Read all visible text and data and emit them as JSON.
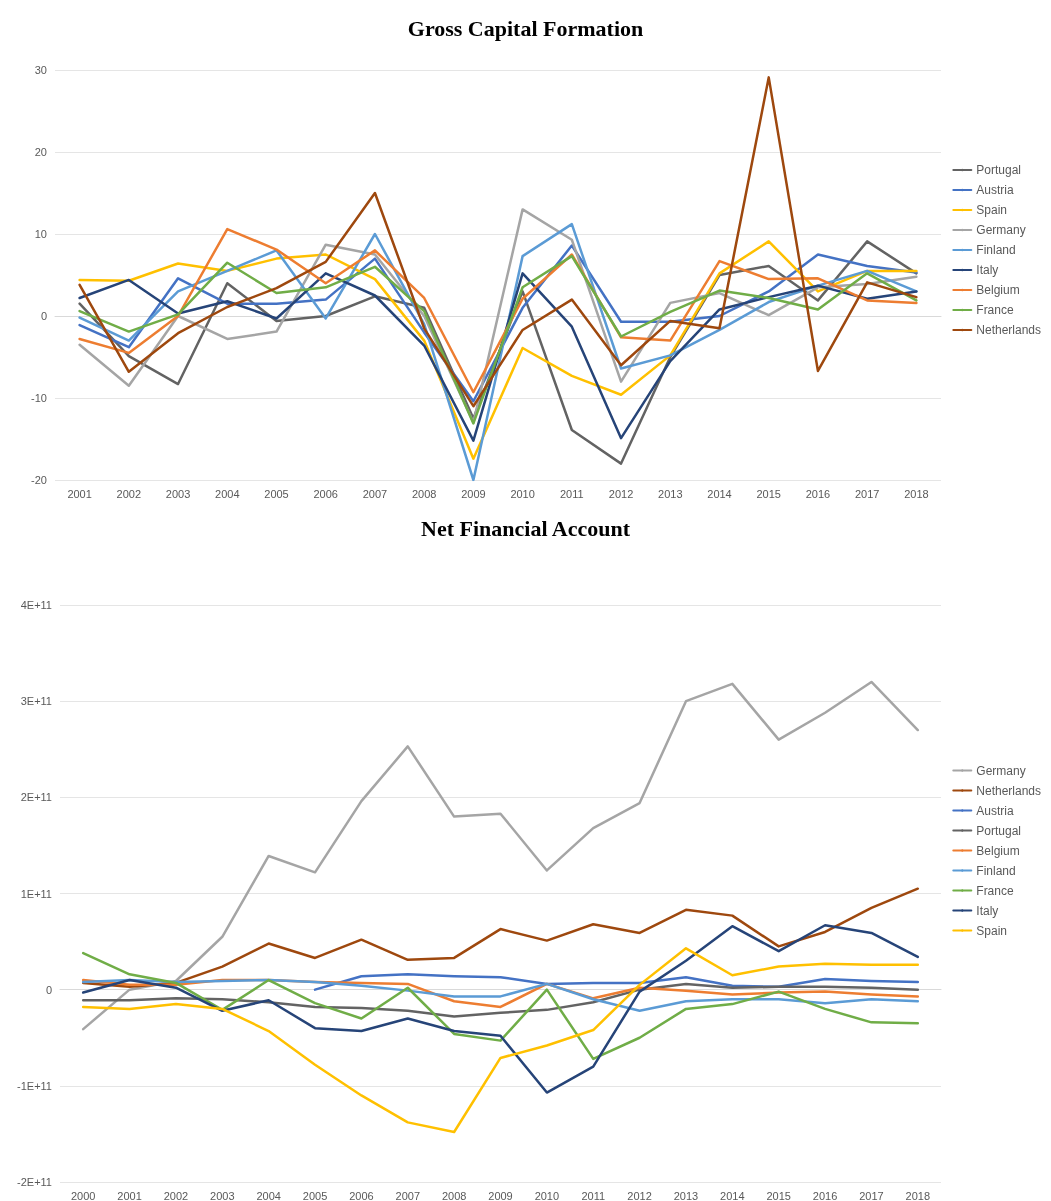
{
  "chart_data": [
    {
      "type": "line",
      "title": "Gross Capital Formation",
      "categories": [
        "2001",
        "2002",
        "2003",
        "2004",
        "2005",
        "2006",
        "2007",
        "2008",
        "2009",
        "2010",
        "2011",
        "2012",
        "2013",
        "2014",
        "2015",
        "2016",
        "2017",
        "2018"
      ],
      "series": [
        {
          "name": "Portugal",
          "color": "#636363",
          "values": [
            1.5,
            -4.9,
            -8.3,
            4,
            -0.6,
            0,
            2.4,
            1,
            -12.5,
            3,
            -13.9,
            -18,
            -5,
            5,
            6.1,
            1.9,
            9.1,
            5.2
          ]
        },
        {
          "name": "Austria",
          "color": "#4472c4",
          "values": [
            -1.1,
            -3.8,
            4.6,
            1.5,
            1.5,
            2,
            7,
            -2,
            -10.4,
            1,
            8.6,
            -0.7,
            -0.7,
            0,
            3,
            7.5,
            6.1,
            5.3
          ]
        },
        {
          "name": "Spain",
          "color": "#ffc000",
          "values": [
            4.4,
            4.3,
            6.4,
            5.5,
            7,
            7.5,
            4.5,
            -3,
            -17.4,
            -3.9,
            -7.3,
            -9.6,
            -4.8,
            5.2,
            9.1,
            3,
            5.5,
            5.5
          ]
        },
        {
          "name": "Germany",
          "color": "#a5a5a5",
          "values": [
            -3.5,
            -8.5,
            0,
            -2.8,
            -1.9,
            8.7,
            7.5,
            0,
            -13,
            13,
            9.3,
            -8,
            1.6,
            2.8,
            0.1,
            3.5,
            3.9,
            4.8
          ]
        },
        {
          "name": "Finland",
          "color": "#5b9bd5",
          "values": [
            -0.2,
            -3,
            3,
            5.5,
            8,
            -0.3,
            10,
            -1,
            -20,
            7.3,
            11.2,
            -6.4,
            -4.8,
            -1.7,
            1.7,
            3.7,
            5.5,
            3
          ]
        },
        {
          "name": "Italy",
          "color": "#264478",
          "values": [
            2.2,
            4.4,
            0.3,
            1.8,
            -0.3,
            5.2,
            2.5,
            -3.6,
            -15.2,
            5.2,
            -1.3,
            -14.9,
            -5.5,
            0.8,
            2.3,
            3.7,
            2.1,
            3
          ]
        },
        {
          "name": "Belgium",
          "color": "#ed7d31",
          "values": [
            -2.8,
            -4.5,
            0,
            10.6,
            8.1,
            4,
            8,
            2.2,
            -9.3,
            2.1,
            7.5,
            -2.6,
            -3,
            6.7,
            4.5,
            4.6,
            1.9,
            1.6
          ]
        },
        {
          "name": "France",
          "color": "#70ad47",
          "values": [
            0.6,
            -1.9,
            0.2,
            6.5,
            2.8,
            3.5,
            6,
            0.6,
            -13.1,
            3.5,
            7.3,
            -2.5,
            0.5,
            3.1,
            2.2,
            0.8,
            5.2,
            1.9
          ]
        },
        {
          "name": "Netherlands",
          "color": "#9e480e",
          "values": [
            3.8,
            -6.8,
            -2.1,
            1.1,
            3.4,
            6.6,
            15,
            -1.5,
            -11,
            -1.7,
            2,
            -6,
            -0.6,
            -1.5,
            29.1,
            -6.7,
            4.1,
            2.3
          ]
        }
      ],
      "ylim": [
        -20,
        30
      ],
      "yticks": [
        -20,
        -10,
        0,
        10,
        20,
        30
      ],
      "grid": "y",
      "legend": "right"
    },
    {
      "type": "line",
      "title": "Net Financial Account",
      "categories": [
        "2000",
        "2001",
        "2002",
        "2003",
        "2004",
        "2005",
        "2006",
        "2007",
        "2008",
        "2009",
        "2010",
        "2011",
        "2012",
        "2013",
        "2014",
        "2015",
        "2016",
        "2017",
        "2018"
      ],
      "series": [
        {
          "name": "Germany",
          "color": "#a5a5a5",
          "values": [
            -41000000000.0,
            0,
            9000000000.0,
            55000000000.0,
            139000000000.0,
            122000000000.0,
            196000000000.0,
            253000000000.0,
            180000000000.0,
            183000000000.0,
            124000000000.0,
            168000000000.0,
            194000000000.0,
            300000000000.0,
            318000000000.0,
            260000000000.0,
            288000000000.0,
            320000000000.0,
            270000000000.0
          ]
        },
        {
          "name": "Netherlands",
          "color": "#9e480e",
          "values": [
            7000000000.0,
            3000000000.0,
            7000000000.0,
            24000000000.0,
            48000000000.0,
            33000000000.0,
            52000000000.0,
            31000000000.0,
            33000000000.0,
            63000000000.0,
            51000000000.0,
            68000000000.0,
            59000000000.0,
            83000000000.0,
            77000000000.0,
            45000000000.0,
            60000000000.0,
            85000000000.0,
            105000000000.0
          ]
        },
        {
          "name": "Austria",
          "color": "#4472c4",
          "values": [
            null,
            null,
            null,
            null,
            null,
            0,
            14000000000.0,
            16000000000.0,
            14000000000.0,
            13000000000.0,
            6000000000.0,
            7000000000.0,
            7000000000.0,
            13000000000.0,
            4000000000.0,
            3000000000.0,
            11000000000.0,
            9000000000.0,
            8000000000.0
          ]
        },
        {
          "name": "Portugal",
          "color": "#636363",
          "values": [
            -11000000000.0,
            -11000000000.0,
            -9000000000.0,
            -10000000000.0,
            -13000000000.0,
            -18000000000.0,
            -19000000000.0,
            -22000000000.0,
            -28000000000.0,
            -24000000000.0,
            -21000000000.0,
            -13000000000.0,
            0,
            6000000000.0,
            2000000000.0,
            3000000000.0,
            3000000000.0,
            2000000000.0,
            0
          ]
        },
        {
          "name": "Belgium",
          "color": "#ed7d31",
          "values": [
            10000000000.0,
            5000000000.0,
            5000000000.0,
            10000000000.0,
            10000000000.0,
            8000000000.0,
            7000000000.0,
            6000000000.0,
            -12000000000.0,
            -18000000000.0,
            6000000000.0,
            -9000000000.0,
            2000000000.0,
            -1000000000.0,
            -5000000000.0,
            -3000000000.0,
            -2000000000.0,
            -5000000000.0,
            -7000000000.0
          ]
        },
        {
          "name": "Finland",
          "color": "#5b9bd5",
          "values": [
            8000000000.0,
            10000000000.0,
            8000000000.0,
            9000000000.0,
            10000000000.0,
            8000000000.0,
            4000000000.0,
            -1000000000.0,
            -7000000000.0,
            -7000000000.0,
            6000000000.0,
            -10000000000.0,
            -22000000000.0,
            -12000000000.0,
            -10000000000.0,
            -10000000000.0,
            -14000000000.0,
            -10000000000.0,
            -12000000000.0
          ]
        },
        {
          "name": "France",
          "color": "#70ad47",
          "values": [
            38000000000.0,
            16000000000.0,
            7000000000.0,
            -21000000000.0,
            10000000000.0,
            -14000000000.0,
            -30000000000.0,
            2000000000.0,
            -46000000000.0,
            -53000000000.0,
            0,
            -72000000000.0,
            -50000000000.0,
            -20000000000.0,
            -15000000000.0,
            -2000000000.0,
            -20000000000.0,
            -34000000000.0,
            -35000000000.0
          ]
        },
        {
          "name": "Italy",
          "color": "#264478",
          "values": [
            -3000000000.0,
            10000000000.0,
            2000000000.0,
            -22000000000.0,
            -11000000000.0,
            -40000000000.0,
            -43000000000.0,
            -30000000000.0,
            -43000000000.0,
            -48000000000.0,
            -107000000000.0,
            -80000000000.0,
            -2000000000.0,
            30000000000.0,
            66000000000.0,
            40000000000.0,
            67000000000.0,
            59000000000.0,
            34000000000.0
          ]
        },
        {
          "name": "Spain",
          "color": "#ffc000",
          "values": [
            -18000000000.0,
            -20000000000.0,
            -15000000000.0,
            -20000000000.0,
            -43000000000.0,
            -78000000000.0,
            -110000000000.0,
            -138000000000.0,
            -148000000000.0,
            -71000000000.0,
            -58000000000.0,
            -42000000000.0,
            5000000000.0,
            43000000000.0,
            15000000000.0,
            24000000000.0,
            27000000000.0,
            26000000000.0,
            26000000000.0
          ]
        }
      ],
      "ylim": [
        -200000000000.0,
        400000000000.0
      ],
      "yticks": [
        {
          "value": -200000000000.0,
          "label": "-2E+11"
        },
        {
          "value": -100000000000.0,
          "label": "-1E+11"
        },
        0,
        {
          "value": 100000000000.0,
          "label": "1E+11"
        },
        {
          "value": 200000000000.0,
          "label": "2E+11"
        },
        {
          "value": 300000000000.0,
          "label": "3E+11"
        },
        {
          "value": 400000000000.0,
          "label": "4E+11"
        }
      ],
      "grid": "y",
      "legend": "right"
    }
  ]
}
